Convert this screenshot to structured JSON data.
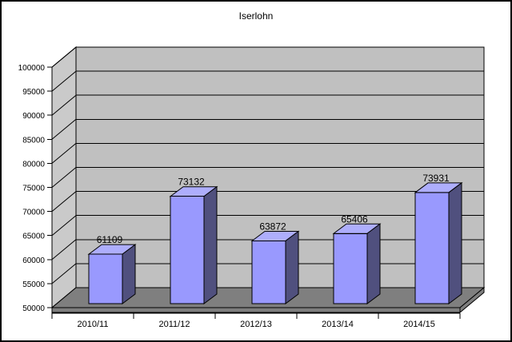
{
  "page": {
    "background": "#FFFFFF",
    "border_color": "#000000"
  },
  "chart_data": {
    "type": "bar",
    "style": "3d-column",
    "title": "Iserlohn",
    "categories": [
      "2010/11",
      "2011/12",
      "2012/13",
      "2013/14",
      "2014/15"
    ],
    "values": [
      61109,
      73132,
      63872,
      65406,
      73931
    ],
    "value_labels": [
      "61109",
      "73132",
      "63872",
      "65406",
      "73931"
    ],
    "xlabel": "",
    "ylabel": "",
    "ylim": [
      50000,
      100000
    ],
    "ytick_step": 5000,
    "ytick_labels": [
      "50000",
      "55000",
      "60000",
      "65000",
      "70000",
      "75000",
      "80000",
      "85000",
      "90000",
      "95000",
      "100000"
    ],
    "grid": true,
    "legend": "none",
    "colors": {
      "bar_front": "#9999FE",
      "bar_side": "#50507E",
      "bar_top": "#AEAEFC",
      "back_wall": "#C0C0C0",
      "side_wall": "#CACACA",
      "floor": "#7F7F7F",
      "gridline": "#000000",
      "axis": "#000000",
      "text": "#000000",
      "background": "#FFFFFF"
    }
  }
}
